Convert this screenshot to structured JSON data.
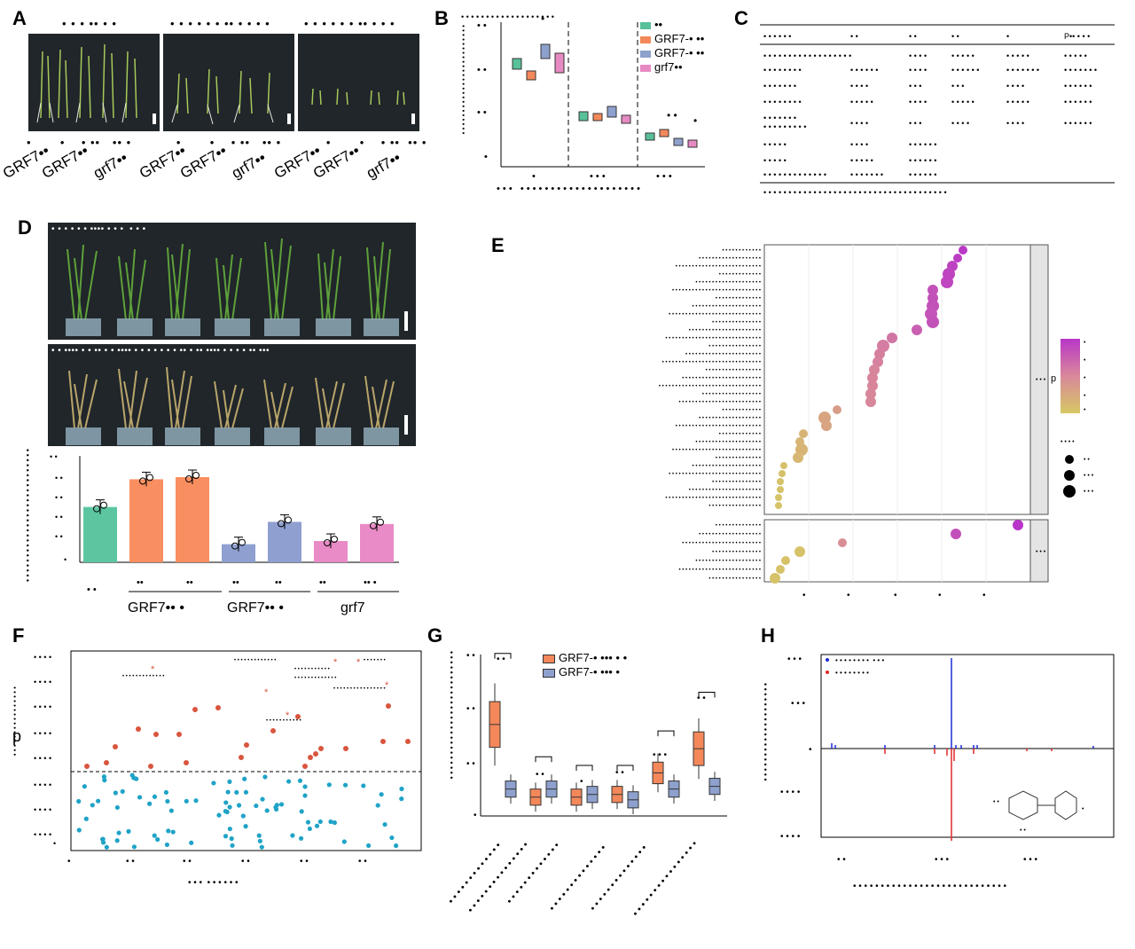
{
  "panel_labels": {
    "a": "A",
    "b": "B",
    "c": "C",
    "d": "D",
    "e": "E",
    "f": "F",
    "g": "G",
    "h": "H"
  },
  "panel_a": {
    "genotype_labels": [
      "GRF7••",
      "GRF7••",
      "grf7••"
    ]
  },
  "panel_b": {
    "legend": [
      "••",
      "GRF7-• ••",
      "GRF7-• ••",
      "grf7••"
    ],
    "legend_colors": [
      "#58c19a",
      "#f4885a",
      "#8ea0cd",
      "#e78ac3"
    ]
  },
  "panel_d": {
    "group_labels": [
      "GRF7••  •",
      "GRF7••  •",
      "grf7"
    ],
    "bar_values": [
      26,
      39,
      40,
      8.5,
      19,
      10,
      18
    ],
    "bar_colors": [
      "#5cc6a0",
      "#f98e60",
      "#f98e60",
      "#8fa0d0",
      "#8fa0d0",
      "#e98bc6",
      "#e98bc6"
    ]
  },
  "panel_e": {
    "legend_title": "p"
  },
  "panel_f": {
    "ylabel": "p",
    "star": "*"
  },
  "panel_g": {
    "legend": [
      "GRF7-• ••• • •",
      "GRF7-• ••• •"
    ],
    "legend_colors": [
      "#f4885a",
      "#8ea0cd"
    ],
    "medians_a": [
      34,
      7,
      7,
      8,
      16,
      25
    ],
    "medians_b": [
      10,
      10,
      8,
      6,
      10,
      11
    ]
  },
  "panel_h": {
    "legend_colors": [
      "#1f2ad8",
      "#e12929"
    ]
  }
}
